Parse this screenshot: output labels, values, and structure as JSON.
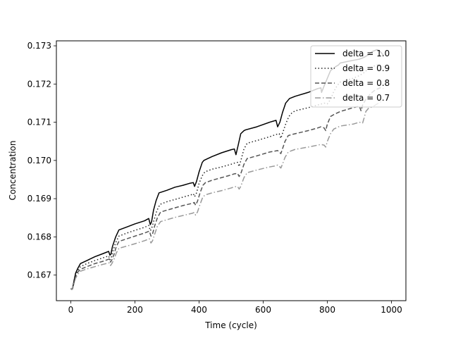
{
  "chart_data": {
    "type": "line",
    "title": "",
    "xlabel": "Time (cycle)",
    "ylabel": "Concentration",
    "xlim": [
      -45,
      1045
    ],
    "ylim": [
      0.16633,
      0.17313
    ],
    "xticks": [
      0,
      200,
      400,
      600,
      800,
      1000
    ],
    "yticks": [
      0.167,
      0.168,
      0.169,
      0.17,
      0.171,
      0.172,
      0.173
    ],
    "ytick_labels": [
      "0.167",
      "0.168",
      "0.169",
      "0.170",
      "0.171",
      "0.172",
      "0.173"
    ],
    "grid": false,
    "legend_position": "top-right",
    "series": [
      {
        "name": "delta = 1.0",
        "color": "#000000",
        "dash": "solid",
        "x": [
          0,
          3,
          6,
          10,
          15,
          22,
          30,
          50,
          75,
          100,
          118,
          122,
          125,
          130,
          140,
          150,
          175,
          200,
          230,
          243,
          248,
          252,
          258,
          266,
          275,
          300,
          325,
          350,
          370,
          382,
          386,
          392,
          400,
          410,
          415,
          440,
          470,
          500,
          510,
          515,
          522,
          530,
          540,
          545,
          580,
          620,
          640,
          645,
          652,
          660,
          670,
          682,
          700,
          740,
          770,
          780,
          782,
          790,
          800,
          810,
          825,
          835,
          840,
          880,
          900,
          915,
          925,
          940,
          955,
          965,
          970,
          975
        ],
        "y": [
          0.16665,
          0.16662,
          0.16667,
          0.16685,
          0.16705,
          0.16718,
          0.1673,
          0.16738,
          0.16748,
          0.16756,
          0.16762,
          0.16752,
          0.16755,
          0.16775,
          0.168,
          0.16818,
          0.16826,
          0.16834,
          0.16842,
          0.16848,
          0.16832,
          0.1684,
          0.1687,
          0.16895,
          0.16915,
          0.16922,
          0.1693,
          0.16935,
          0.1694,
          0.16942,
          0.16932,
          0.16945,
          0.1697,
          0.16995,
          0.17,
          0.1701,
          0.1702,
          0.17028,
          0.1703,
          0.17015,
          0.1704,
          0.1707,
          0.17078,
          0.1708,
          0.17088,
          0.171,
          0.17105,
          0.17088,
          0.171,
          0.17125,
          0.1715,
          0.17162,
          0.17168,
          0.17178,
          0.17188,
          0.1719,
          0.17178,
          0.17195,
          0.17215,
          0.17235,
          0.17245,
          0.1725,
          0.17255,
          0.17262,
          0.17265,
          0.1727,
          0.17275,
          0.17285,
          0.1729,
          0.17285,
          0.1728,
          0.17275
        ]
      },
      {
        "name": "delta = 0.9",
        "color": "#222222",
        "dash": "1.5,3",
        "x": [
          0,
          3,
          6,
          10,
          15,
          22,
          30,
          50,
          75,
          100,
          118,
          122,
          126,
          132,
          140,
          150,
          175,
          200,
          230,
          243,
          248,
          252,
          260,
          268,
          278,
          300,
          325,
          350,
          375,
          382,
          386,
          392,
          400,
          410,
          418,
          440,
          470,
          500,
          510,
          520,
          525,
          532,
          540,
          550,
          580,
          620,
          640,
          650,
          655,
          662,
          670,
          680,
          690,
          700,
          740,
          770,
          790,
          800,
          810,
          820,
          830,
          840,
          880,
          900,
          915,
          925,
          940,
          955,
          965,
          975
        ],
        "y": [
          0.16665,
          0.16662,
          0.16666,
          0.16682,
          0.167,
          0.16712,
          0.16722,
          0.1673,
          0.16738,
          0.16745,
          0.1675,
          0.1674,
          0.16745,
          0.16765,
          0.16785,
          0.16802,
          0.1681,
          0.16817,
          0.16825,
          0.1683,
          0.16816,
          0.16822,
          0.16845,
          0.16868,
          0.16885,
          0.16892,
          0.16898,
          0.16904,
          0.1691,
          0.16913,
          0.16905,
          0.16915,
          0.1694,
          0.1696,
          0.1697,
          0.16977,
          0.16983,
          0.1699,
          0.16993,
          0.16995,
          0.16984,
          0.17005,
          0.1703,
          0.17045,
          0.17052,
          0.17062,
          0.17068,
          0.1707,
          0.17058,
          0.17075,
          0.17095,
          0.17115,
          0.17125,
          0.1713,
          0.17138,
          0.17145,
          0.1715,
          0.17148,
          0.1716,
          0.1718,
          0.17195,
          0.17205,
          0.17215,
          0.17222,
          0.1723,
          0.17238,
          0.17245,
          0.1725,
          0.17248,
          0.17245
        ]
      },
      {
        "name": "delta = 0.8",
        "color": "#555555",
        "dash": "6,3",
        "x": [
          0,
          3,
          6,
          10,
          15,
          22,
          30,
          50,
          75,
          100,
          120,
          124,
          128,
          135,
          142,
          150,
          175,
          200,
          230,
          245,
          250,
          255,
          262,
          270,
          280,
          300,
          325,
          350,
          380,
          385,
          389,
          395,
          403,
          412,
          420,
          440,
          470,
          500,
          510,
          520,
          525,
          530,
          540,
          550,
          580,
          620,
          640,
          645,
          650,
          655,
          660,
          668,
          678,
          690,
          700,
          740,
          770,
          780,
          790,
          795,
          800,
          810,
          820,
          840,
          880,
          900,
          905,
          910,
          920,
          935,
          950,
          965,
          975
        ],
        "y": [
          0.16665,
          0.16662,
          0.16665,
          0.1668,
          0.16695,
          0.16708,
          0.16715,
          0.16722,
          0.1673,
          0.16736,
          0.16742,
          0.16734,
          0.1674,
          0.16755,
          0.16775,
          0.16788,
          0.16795,
          0.16802,
          0.1681,
          0.16815,
          0.16802,
          0.16808,
          0.1683,
          0.1685,
          0.16865,
          0.1687,
          0.16876,
          0.16882,
          0.16888,
          0.1689,
          0.16883,
          0.16893,
          0.16915,
          0.16935,
          0.16942,
          0.16948,
          0.16955,
          0.16962,
          0.16965,
          0.16966,
          0.16958,
          0.16965,
          0.1699,
          0.17005,
          0.17012,
          0.17022,
          0.17025,
          0.17026,
          0.17022,
          0.17018,
          0.1703,
          0.1705,
          0.17065,
          0.17068,
          0.1707,
          0.17078,
          0.17085,
          0.17088,
          0.17085,
          0.17078,
          0.17095,
          0.17115,
          0.1712,
          0.17128,
          0.17138,
          0.17142,
          0.1713,
          0.17145,
          0.1716,
          0.17175,
          0.17185,
          0.1719,
          0.17188
        ]
      },
      {
        "name": "delta = 0.7",
        "color": "#999999",
        "dash": "8,3,1.5,3",
        "x": [
          0,
          3,
          6,
          10,
          15,
          22,
          30,
          50,
          75,
          100,
          120,
          124,
          128,
          135,
          142,
          150,
          175,
          200,
          230,
          245,
          250,
          255,
          262,
          270,
          280,
          300,
          325,
          350,
          380,
          385,
          389,
          395,
          403,
          412,
          420,
          440,
          470,
          500,
          510,
          520,
          525,
          530,
          540,
          550,
          580,
          620,
          640,
          645,
          650,
          655,
          660,
          668,
          678,
          690,
          700,
          740,
          770,
          780,
          790,
          795,
          800,
          810,
          820,
          840,
          880,
          900,
          910,
          915,
          920,
          930,
          940,
          950,
          960,
          970,
          975
        ],
        "y": [
          0.16665,
          0.16662,
          0.16664,
          0.16678,
          0.16692,
          0.16702,
          0.1671,
          0.16716,
          0.16722,
          0.16728,
          0.16732,
          0.16725,
          0.1673,
          0.16742,
          0.16758,
          0.1677,
          0.16776,
          0.16782,
          0.1679,
          0.16795,
          0.16784,
          0.1679,
          0.16808,
          0.16828,
          0.1684,
          0.16845,
          0.16851,
          0.16856,
          0.16862,
          0.16864,
          0.16857,
          0.16865,
          0.16885,
          0.16905,
          0.1691,
          0.16915,
          0.16921,
          0.16928,
          0.16931,
          0.16932,
          0.16925,
          0.16932,
          0.16955,
          0.16968,
          0.16975,
          0.16983,
          0.16986,
          0.16988,
          0.16985,
          0.1698,
          0.1699,
          0.17008,
          0.17022,
          0.17026,
          0.17029,
          0.17035,
          0.1704,
          0.17042,
          0.1704,
          0.17035,
          0.1705,
          0.1707,
          0.17082,
          0.1709,
          0.17095,
          0.171,
          0.17098,
          0.17112,
          0.17128,
          0.17138,
          0.1714,
          0.17145,
          0.1715,
          0.17155,
          0.17155
        ]
      }
    ]
  }
}
